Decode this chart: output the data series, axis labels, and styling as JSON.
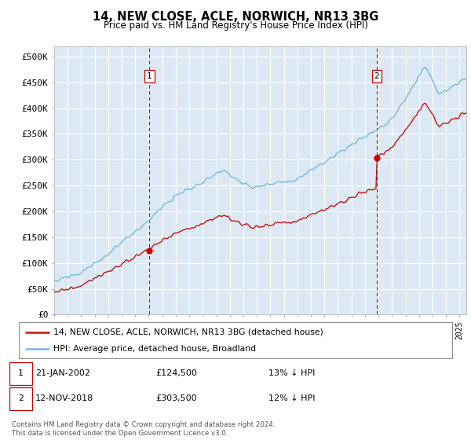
{
  "title": "14, NEW CLOSE, ACLE, NORWICH, NR13 3BG",
  "subtitle": "Price paid vs. HM Land Registry's House Price Index (HPI)",
  "hpi_color": "#7ab8d9",
  "price_color": "#cc1111",
  "marker_color": "#cc0000",
  "vline_color": "#cc0000",
  "annotation1_label": "1",
  "annotation2_label": "2",
  "sale1_year": 2002.05,
  "sale1_price": 124500,
  "sale2_year": 2018.87,
  "sale2_price": 303500,
  "legend_line1": "14, NEW CLOSE, ACLE, NORWICH, NR13 3BG (detached house)",
  "legend_line2": "HPI: Average price, detached house, Broadland",
  "footer": "Contains HM Land Registry data © Crown copyright and database right 2024.\nThis data is licensed under the Open Government Licence v3.0.",
  "fig_bg": "#ffffff",
  "plot_bg": "#dce9f5",
  "grid_color": "#ffffff",
  "ylim": [
    0,
    520000
  ],
  "xlim_start": 1995.0,
  "xlim_end": 2025.5
}
